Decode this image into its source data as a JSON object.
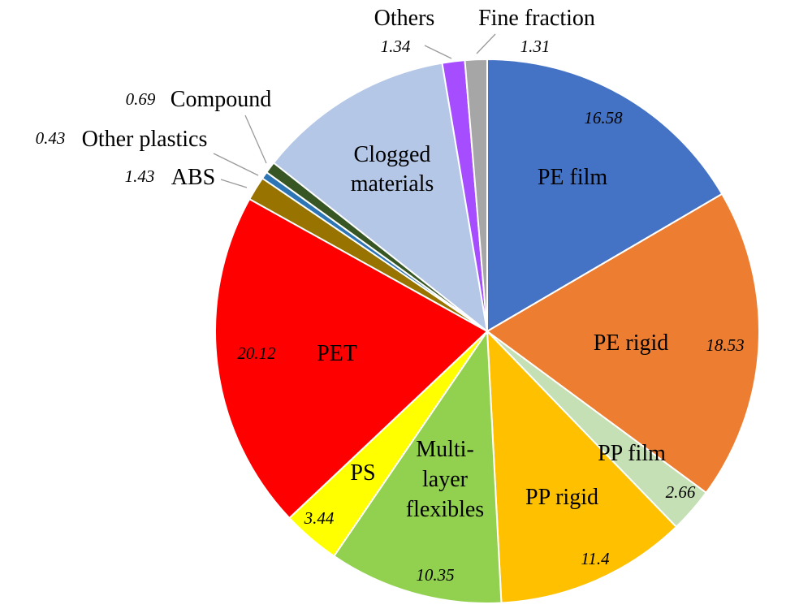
{
  "chart_data": {
    "type": "pie",
    "start_angle_deg": 0,
    "direction": "clockwise",
    "slices": [
      {
        "label": "PE film",
        "value": 16.58,
        "value_text": "16.58",
        "color": "#4472C4"
      },
      {
        "label": "PE rigid",
        "value": 18.53,
        "value_text": "18.53",
        "color": "#ED7D31"
      },
      {
        "label": "PP film",
        "value": 2.66,
        "value_text": "2.66",
        "color": "#C5E0B4"
      },
      {
        "label": "PP rigid",
        "value": 11.4,
        "value_text": "11.4",
        "color": "#FFC000"
      },
      {
        "label": "Multi- layer flexibles",
        "label_lines": [
          "Multi-",
          "layer",
          "flexibles"
        ],
        "value": 10.35,
        "value_text": "10.35",
        "color": "#92D050"
      },
      {
        "label": "PS",
        "value": 3.44,
        "value_text": "3.44",
        "color": "#FFFF00"
      },
      {
        "label": "PET",
        "value": 20.12,
        "value_text": "20.12",
        "color": "#FF0000"
      },
      {
        "label": "ABS",
        "value": 1.43,
        "value_text": "1.43",
        "color": "#997300"
      },
      {
        "label": "Other plastics",
        "value": 0.43,
        "value_text": "0.43",
        "color": "#2E75B6"
      },
      {
        "label": "Compound",
        "value": 0.69,
        "value_text": "0.69",
        "color": "#375623"
      },
      {
        "label": "Clogged materials",
        "label_lines": [
          "Clogged",
          "materials"
        ],
        "value": 11.72,
        "value_text": "",
        "color": "#B4C7E7"
      },
      {
        "label": "Others",
        "value": 1.34,
        "value_text": "1.34",
        "color": "#A64DFF"
      },
      {
        "label": "Fine fraction",
        "value": 1.31,
        "value_text": "1.31",
        "color": "#A6A6A6"
      }
    ]
  }
}
